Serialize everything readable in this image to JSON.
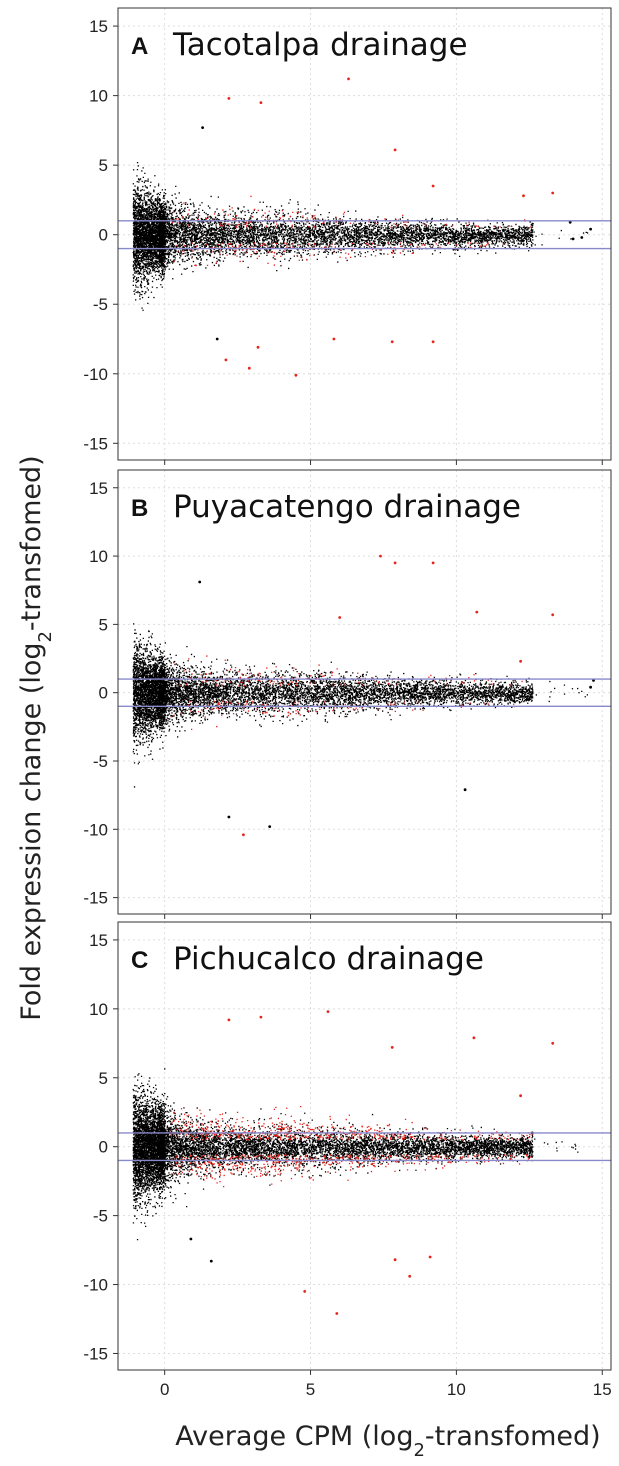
{
  "figure": {
    "ylabel_main": "Fold expression change (log",
    "ylabel_sub": "2",
    "ylabel_tail": "-transfomed)",
    "xlabel_main": "Average CPM (log",
    "xlabel_sub": "2",
    "xlabel_tail": "-transfomed)"
  },
  "colors": {
    "background_point": "#000000",
    "significant_point": "#e8231a",
    "threshold_line": "#8888cc",
    "grid": "#dddddd",
    "frame": "#333333"
  },
  "chart_data": [
    {
      "type": "scatter",
      "panel_letter": "A",
      "title": "Tacotalpa drainage",
      "xlim": [
        -1.6,
        15.3
      ],
      "ylim": [
        -16.2,
        16.3
      ],
      "x_ticks": [
        "0",
        "5",
        "10",
        "15"
      ],
      "y_ticks": [
        "15",
        "10",
        "5",
        "0",
        "-5",
        "-10",
        "-15"
      ],
      "threshold_lines": [
        1,
        -1
      ],
      "show_x_tick_labels": false,
      "n_points": 9000,
      "significant_fraction": 0.12,
      "spread_scale": 1.0,
      "series": [
        {
          "color": "red",
          "values": [
            [
              2.2,
              9.8
            ],
            [
              3.3,
              9.5
            ],
            [
              6.3,
              11.2
            ],
            [
              7.9,
              6.1
            ],
            [
              9.2,
              3.5
            ],
            [
              12.3,
              2.8
            ],
            [
              13.3,
              3.0
            ],
            [
              2.1,
              -9.0
            ],
            [
              2.9,
              -9.6
            ],
            [
              4.5,
              -10.1
            ],
            [
              7.8,
              -7.7
            ],
            [
              9.2,
              -7.7
            ],
            [
              3.2,
              -8.1
            ],
            [
              5.8,
              -7.5
            ]
          ]
        },
        {
          "color": "black",
          "values": [
            [
              1.3,
              7.7
            ],
            [
              1.8,
              -7.5
            ],
            [
              14.6,
              0.4
            ],
            [
              14.3,
              -0.2
            ],
            [
              13.9,
              0.9
            ],
            [
              14.0,
              -0.3
            ]
          ]
        }
      ]
    },
    {
      "type": "scatter",
      "panel_letter": "B",
      "title": "Puyacatengo drainage",
      "xlim": [
        -1.6,
        15.3
      ],
      "ylim": [
        -16.2,
        16.3
      ],
      "x_ticks": [
        "0",
        "5",
        "10",
        "15"
      ],
      "y_ticks": [
        "15",
        "10",
        "5",
        "0",
        "-5",
        "-10",
        "-15"
      ],
      "threshold_lines": [
        1,
        -1
      ],
      "show_x_tick_labels": false,
      "n_points": 9000,
      "significant_fraction": 0.1,
      "spread_scale": 1.0,
      "series": [
        {
          "color": "red",
          "values": [
            [
              7.4,
              10.0
            ],
            [
              7.9,
              9.5
            ],
            [
              9.2,
              9.5
            ],
            [
              10.7,
              5.9
            ],
            [
              13.3,
              5.7
            ],
            [
              2.7,
              -10.4
            ],
            [
              12.2,
              2.3
            ],
            [
              6.0,
              5.5
            ]
          ]
        },
        {
          "color": "black",
          "values": [
            [
              1.2,
              8.1
            ],
            [
              3.6,
              -9.8
            ],
            [
              10.3,
              -7.1
            ],
            [
              14.6,
              0.4
            ],
            [
              14.7,
              0.9
            ],
            [
              2.2,
              -9.1
            ]
          ]
        }
      ]
    },
    {
      "type": "scatter",
      "panel_letter": "C",
      "title": "Pichucalco drainage",
      "xlim": [
        -1.6,
        15.3
      ],
      "ylim": [
        -16.2,
        16.3
      ],
      "x_ticks": [
        "0",
        "5",
        "10",
        "15"
      ],
      "y_ticks": [
        "15",
        "10",
        "5",
        "0",
        "-5",
        "-10",
        "-15"
      ],
      "threshold_lines": [
        1,
        -1
      ],
      "show_x_tick_labels": true,
      "n_points": 11000,
      "significant_fraction": 0.28,
      "spread_scale": 1.1,
      "series": [
        {
          "color": "red",
          "values": [
            [
              2.2,
              9.2
            ],
            [
              3.3,
              9.4
            ],
            [
              5.6,
              9.8
            ],
            [
              7.8,
              7.2
            ],
            [
              10.6,
              7.9
            ],
            [
              13.3,
              7.5
            ],
            [
              5.9,
              -12.1
            ],
            [
              4.8,
              -10.5
            ],
            [
              7.9,
              -8.2
            ],
            [
              8.4,
              -9.4
            ],
            [
              9.1,
              -8.0
            ],
            [
              12.2,
              3.7
            ]
          ]
        },
        {
          "color": "black",
          "values": [
            [
              0.9,
              -6.7
            ],
            [
              1.6,
              -8.3
            ],
            [
              12.6,
              1.0
            ],
            [
              12.4,
              -0.2
            ]
          ]
        }
      ]
    }
  ]
}
